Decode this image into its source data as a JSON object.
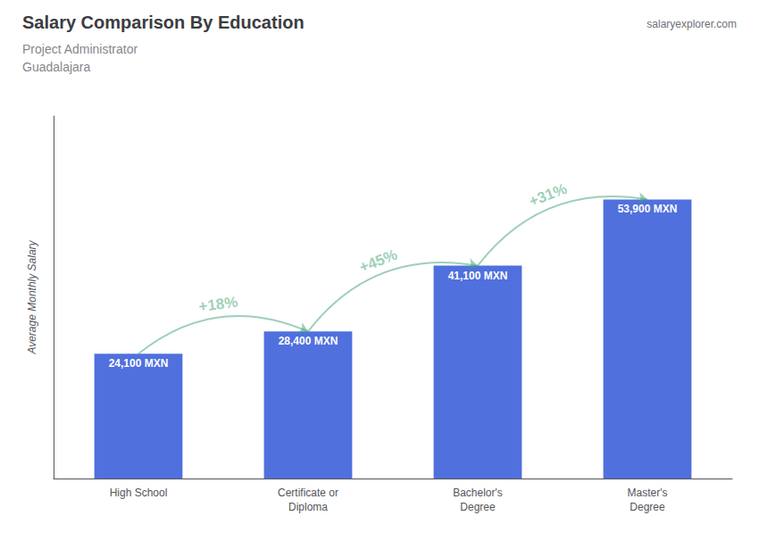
{
  "chart_data": {
    "type": "bar",
    "title": "Salary Comparison By Education",
    "subtitle": [
      "Project Administrator",
      "Guadalajara"
    ],
    "source": "salaryexplorer.com",
    "ylabel": "Average Monthly Salary",
    "categories": [
      "High School",
      "Certificate or\nDiploma",
      "Bachelor's\nDegree",
      "Master's\nDegree"
    ],
    "values": [
      24100,
      28400,
      41100,
      53900
    ],
    "value_labels": [
      "24,100 MXN",
      "28,400 MXN",
      "41,100 MXN",
      "53,900 MXN"
    ],
    "data_labels": true,
    "annotations": [
      {
        "text": "+18%",
        "from": "High School",
        "to": "Certificate or\nDiploma"
      },
      {
        "text": "+45%",
        "from": "Certificate or\nDiploma",
        "to": "Bachelor's\nDegree"
      },
      {
        "text": "+31%",
        "from": "Bachelor's\nDegree",
        "to": "Master's\nDegree"
      }
    ],
    "ylim": [
      0,
      70000
    ],
    "grid": false,
    "tick_labels": "x"
  }
}
